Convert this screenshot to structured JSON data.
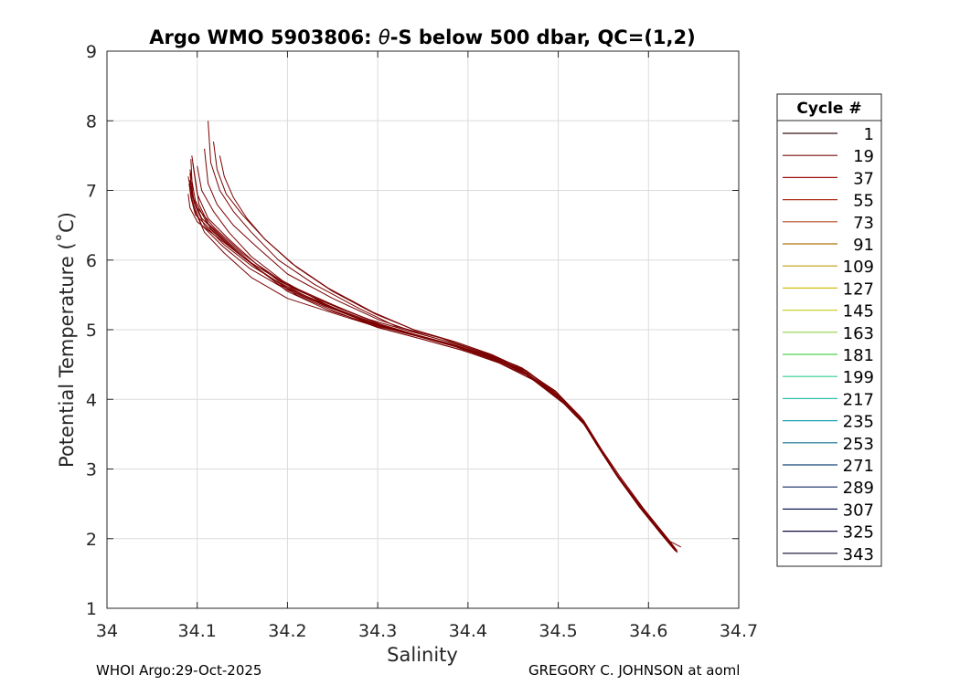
{
  "chart_data": {
    "type": "line",
    "title_prefix": "Argo WMO 5903806: ",
    "title_symbol": "θ",
    "title_suffix": "-S below 500 dbar,  QC=(1,2)",
    "xlabel": "Salinity",
    "ylabel": "Potential Temperature (˚C)",
    "xlim": [
      34.0,
      34.7
    ],
    "ylim": [
      1,
      9
    ],
    "xticks": [
      "34",
      "34.1",
      "34.2",
      "34.3",
      "34.4",
      "34.5",
      "34.6",
      "34.7"
    ],
    "yticks": [
      "1",
      "2",
      "3",
      "4",
      "5",
      "6",
      "7",
      "8",
      "9"
    ],
    "grid": true,
    "legend": {
      "title": "Cycle #",
      "placement": "outside-right",
      "entries": [
        {
          "label": "1",
          "color": "#3a1010"
        },
        {
          "label": "19",
          "color": "#7a0c0c"
        },
        {
          "label": "37",
          "color": "#a01010"
        },
        {
          "label": "55",
          "color": "#b02a1a"
        },
        {
          "label": "73",
          "color": "#b84a20"
        },
        {
          "label": "91",
          "color": "#b07010"
        },
        {
          "label": "109",
          "color": "#c09a10"
        },
        {
          "label": "127",
          "color": "#d0c010"
        },
        {
          "label": "145",
          "color": "#c8d030"
        },
        {
          "label": "163",
          "color": "#90d040"
        },
        {
          "label": "181",
          "color": "#50d050"
        },
        {
          "label": "199",
          "color": "#30d090"
        },
        {
          "label": "217",
          "color": "#30c0b0"
        },
        {
          "label": "235",
          "color": "#20a0b0"
        },
        {
          "label": "253",
          "color": "#107090"
        },
        {
          "label": "271",
          "color": "#104878"
        },
        {
          "label": "289",
          "color": "#102860"
        },
        {
          "label": "307",
          "color": "#101850"
        },
        {
          "label": "325",
          "color": "#100c40"
        },
        {
          "label": "343",
          "color": "#0c0830"
        }
      ]
    },
    "series_color": "#7a0000",
    "series": [
      {
        "x": [
          34.093,
          34.095,
          34.105,
          34.125,
          34.15,
          34.19,
          34.24,
          34.29,
          34.33,
          34.38,
          34.42,
          34.46,
          34.5,
          34.525,
          34.545,
          34.565,
          34.59,
          34.615,
          34.628
        ],
        "y": [
          7.45,
          6.9,
          6.6,
          6.35,
          6.05,
          5.65,
          5.35,
          5.1,
          4.95,
          4.8,
          4.62,
          4.4,
          4.05,
          3.72,
          3.3,
          2.9,
          2.45,
          2.05,
          1.85
        ]
      },
      {
        "x": [
          34.092,
          34.098,
          34.11,
          34.135,
          34.165,
          34.2,
          34.245,
          34.3,
          34.34,
          34.385,
          34.425,
          34.465,
          34.502,
          34.527,
          34.547,
          34.567,
          34.592,
          34.617,
          34.63
        ],
        "y": [
          7.3,
          6.85,
          6.55,
          6.25,
          5.9,
          5.55,
          5.28,
          5.05,
          4.92,
          4.76,
          4.58,
          4.35,
          4.0,
          3.68,
          3.26,
          2.86,
          2.42,
          2.02,
          1.82
        ]
      },
      {
        "x": [
          34.09,
          34.094,
          34.1,
          34.12,
          34.15,
          34.19,
          34.24,
          34.29,
          34.335,
          34.38,
          34.42,
          34.46,
          34.498,
          34.524,
          34.543,
          34.563,
          34.588,
          34.612,
          34.625
        ],
        "y": [
          7.2,
          6.95,
          6.75,
          6.45,
          6.1,
          5.7,
          5.4,
          5.15,
          4.98,
          4.82,
          4.66,
          4.45,
          4.1,
          3.76,
          3.34,
          2.94,
          2.5,
          2.1,
          1.9
        ]
      },
      {
        "x": [
          34.094,
          34.102,
          34.115,
          34.14,
          34.17,
          34.21,
          34.255,
          34.3,
          34.345,
          34.39,
          34.43,
          34.47,
          34.505,
          34.529,
          34.549,
          34.57,
          34.595,
          34.62,
          34.632
        ],
        "y": [
          7.5,
          6.8,
          6.45,
          6.15,
          5.85,
          5.5,
          5.25,
          5.03,
          4.88,
          4.72,
          4.55,
          4.3,
          3.96,
          3.64,
          3.22,
          2.82,
          2.38,
          1.98,
          1.8
        ]
      },
      {
        "x": [
          34.112,
          34.115,
          34.125,
          34.14,
          34.16,
          34.19,
          34.23,
          34.28,
          34.32,
          34.37,
          34.41,
          34.455,
          34.497,
          34.522,
          34.542,
          34.562,
          34.587,
          34.612,
          34.626
        ],
        "y": [
          8.0,
          7.4,
          7.0,
          6.7,
          6.4,
          6.0,
          5.65,
          5.3,
          5.05,
          4.88,
          4.7,
          4.48,
          4.12,
          3.78,
          3.36,
          2.96,
          2.52,
          2.12,
          1.92
        ]
      },
      {
        "x": [
          34.108,
          34.112,
          34.122,
          34.14,
          34.165,
          34.2,
          34.25,
          34.3,
          34.345,
          34.39,
          34.43,
          34.468,
          34.503,
          34.528,
          34.548,
          34.569,
          34.594,
          34.619,
          34.631
        ],
        "y": [
          7.6,
          7.1,
          6.8,
          6.5,
          6.2,
          5.8,
          5.45,
          5.15,
          4.95,
          4.78,
          4.6,
          4.38,
          4.02,
          3.7,
          3.28,
          2.88,
          2.44,
          2.04,
          1.84
        ]
      },
      {
        "x": [
          34.125,
          34.13,
          34.14,
          34.155,
          34.175,
          34.205,
          34.245,
          34.295,
          34.34,
          34.385,
          34.425,
          34.463,
          34.5,
          34.526,
          34.546,
          34.566,
          34.591,
          34.616,
          34.629
        ],
        "y": [
          7.5,
          7.2,
          6.9,
          6.6,
          6.3,
          5.95,
          5.6,
          5.25,
          5.0,
          4.83,
          4.65,
          4.42,
          4.06,
          3.73,
          3.31,
          2.91,
          2.47,
          2.07,
          1.87
        ]
      },
      {
        "x": [
          34.091,
          34.093,
          34.098,
          34.118,
          34.145,
          34.18,
          34.23,
          34.285,
          34.33,
          34.375,
          34.418,
          34.458,
          34.497,
          34.523,
          34.544,
          34.564,
          34.59,
          34.614,
          34.627
        ],
        "y": [
          7.1,
          6.9,
          6.65,
          6.4,
          6.1,
          5.75,
          5.42,
          5.12,
          4.96,
          4.81,
          4.64,
          4.43,
          4.08,
          3.75,
          3.33,
          2.93,
          2.49,
          2.09,
          1.89
        ]
      },
      {
        "x": [
          34.1,
          34.105,
          34.118,
          34.135,
          34.16,
          34.195,
          34.24,
          34.29,
          34.335,
          34.382,
          34.422,
          34.462,
          34.501,
          34.526,
          34.546,
          34.566,
          34.591,
          34.616,
          34.628
        ],
        "y": [
          7.35,
          7.0,
          6.7,
          6.4,
          6.05,
          5.7,
          5.38,
          5.1,
          4.94,
          4.79,
          4.62,
          4.4,
          4.05,
          3.72,
          3.3,
          2.9,
          2.46,
          2.06,
          1.86
        ]
      },
      {
        "x": [
          34.092,
          34.096,
          34.108,
          34.13,
          34.16,
          34.2,
          34.26,
          34.31,
          34.35,
          34.395,
          34.435,
          34.472,
          34.506,
          34.53,
          34.55,
          34.572,
          34.598,
          34.624,
          34.636
        ],
        "y": [
          7.25,
          6.75,
          6.4,
          6.1,
          5.75,
          5.45,
          5.2,
          5.0,
          4.86,
          4.7,
          4.52,
          4.28,
          3.94,
          3.62,
          3.2,
          2.8,
          2.36,
          1.96,
          1.88
        ]
      },
      {
        "x": [
          34.095,
          34.1,
          34.112,
          34.135,
          34.165,
          34.205,
          34.255,
          34.305,
          34.348,
          34.392,
          34.432,
          34.469,
          34.504,
          34.529,
          34.549,
          34.569,
          34.594,
          34.619,
          34.631
        ],
        "y": [
          7.4,
          6.95,
          6.6,
          6.3,
          5.95,
          5.6,
          5.32,
          5.07,
          4.9,
          4.74,
          4.57,
          4.33,
          3.98,
          3.66,
          3.24,
          2.84,
          2.4,
          2.0,
          1.82
        ]
      },
      {
        "x": [
          34.09,
          34.092,
          34.1,
          34.125,
          34.155,
          34.195,
          34.25,
          34.3,
          34.342,
          34.388,
          34.428,
          34.466,
          34.502,
          34.527,
          34.547,
          34.567,
          34.592,
          34.617,
          34.63
        ],
        "y": [
          6.95,
          6.75,
          6.55,
          6.3,
          6.0,
          5.68,
          5.36,
          5.09,
          4.93,
          4.77,
          4.6,
          4.37,
          4.01,
          3.69,
          3.27,
          2.87,
          2.43,
          2.03,
          1.83
        ]
      },
      {
        "x": [
          34.118,
          34.122,
          34.132,
          34.15,
          34.175,
          34.21,
          34.25,
          34.298,
          34.342,
          34.387,
          34.427,
          34.465,
          34.501,
          34.526,
          34.546,
          34.566,
          34.591,
          34.616,
          34.629
        ],
        "y": [
          7.7,
          7.3,
          6.95,
          6.65,
          6.3,
          5.9,
          5.55,
          5.22,
          4.99,
          4.82,
          4.64,
          4.41,
          4.05,
          3.72,
          3.3,
          2.9,
          2.46,
          2.06,
          1.86
        ]
      },
      {
        "x": [
          34.092,
          34.094,
          34.105,
          34.128,
          34.158,
          34.198,
          34.25,
          34.302,
          34.344,
          34.389,
          34.429,
          34.467,
          34.503,
          34.528,
          34.548,
          34.568,
          34.593,
          34.618,
          34.63
        ],
        "y": [
          7.15,
          6.85,
          6.5,
          6.2,
          5.88,
          5.58,
          5.3,
          5.06,
          4.91,
          4.75,
          4.58,
          4.35,
          3.99,
          3.67,
          3.25,
          2.85,
          2.41,
          2.01,
          1.83
        ]
      },
      {
        "x": [
          34.094,
          34.097,
          34.108,
          34.13,
          34.16,
          34.2,
          34.252,
          34.304,
          34.346,
          34.391,
          34.431,
          34.468,
          34.504,
          34.529,
          34.549,
          34.569,
          34.594,
          34.619,
          34.632
        ],
        "y": [
          7.05,
          6.8,
          6.5,
          6.22,
          5.92,
          5.6,
          5.31,
          5.06,
          4.9,
          4.74,
          4.57,
          4.34,
          3.98,
          3.66,
          3.24,
          2.84,
          2.4,
          2.0,
          1.82
        ]
      }
    ]
  },
  "footer": {
    "left": "WHOI Argo:29-Oct-2025",
    "right": "GREGORY C. JOHNSON at aoml"
  }
}
